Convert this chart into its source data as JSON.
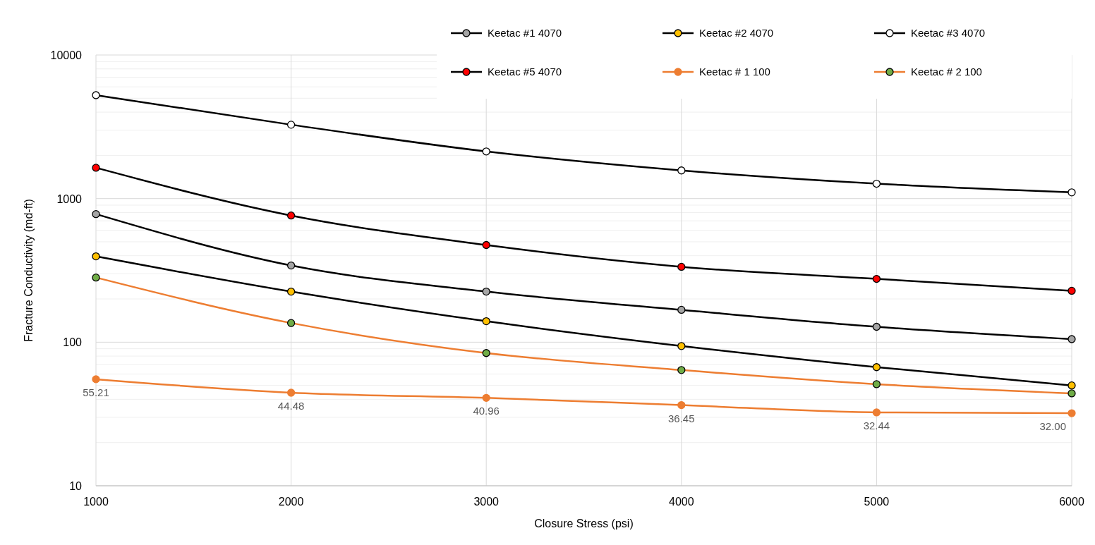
{
  "chart_data": {
    "type": "line",
    "xlabel": "Closure Stress (psi)",
    "ylabel": "Fracture Conductivity (md-ft)",
    "x": [
      1000,
      2000,
      3000,
      4000,
      5000,
      6000
    ],
    "xlim": [
      1000,
      6000
    ],
    "xticks": [
      1000,
      2000,
      3000,
      4000,
      5000,
      6000
    ],
    "ylim": [
      10,
      10000
    ],
    "yticks": [
      10,
      100,
      1000,
      10000
    ],
    "log": "y",
    "grid": true,
    "legend": "top right",
    "marker": "circle",
    "line_style": "solid",
    "series": [
      {
        "name": "Keetac #1 4070",
        "color": "#000000",
        "colors": [
          "#a5a5a5",
          "#a5a5a5",
          "#a5a5a5",
          "#a5a5a5",
          "#a5a5a5",
          "#a5a5a5"
        ],
        "values": [
          780,
          342,
          225,
          168,
          128,
          105
        ]
      },
      {
        "name": "Keetac #2 4070",
        "color": "#000000",
        "colors": [
          "#ffc000",
          "#ffc000",
          "#ffc000",
          "#ffc000",
          "#ffc000",
          "#ffc000"
        ],
        "values": [
          396,
          225,
          140,
          94,
          67,
          50
        ]
      },
      {
        "name": "Keetac #3 4070",
        "color": "#000000",
        "colors": [
          "#ffffff",
          "#ffffff",
          "#ffffff",
          "#ffffff",
          "#ffffff",
          "#ffffff"
        ],
        "values": [
          5250,
          3270,
          2130,
          1570,
          1270,
          1105
        ]
      },
      {
        "name": "Keetac #5 4070",
        "color": "#000000",
        "colors": [
          "#ff0000",
          "#ff0000",
          "#ff0000",
          "#ff0000",
          "#ff0000",
          "#ff0000"
        ],
        "values": [
          1640,
          762,
          475,
          335,
          276,
          228
        ]
      },
      {
        "name": "Keetac # 1 100",
        "color": "#ed7d31",
        "colors": [
          "#ed7d31",
          "#ed7d31",
          "#ed7d31",
          "#ed7d31",
          "#ed7d31",
          "#ed7d31"
        ],
        "values": [
          55.21,
          44.48,
          40.96,
          36.45,
          32.44,
          32.0
        ],
        "value_labels": [
          "55.21",
          "44.48",
          "40.96",
          "36.45",
          "32.44",
          "32.00"
        ]
      },
      {
        "name": "Keetac # 2 100",
        "color": "#ed7d31",
        "colors": [
          "#70ad47",
          "#70ad47",
          "#70ad47",
          "#70ad47",
          "#70ad47",
          "#70ad47"
        ],
        "values": [
          282,
          136,
          84,
          64,
          51,
          44
        ]
      }
    ]
  }
}
